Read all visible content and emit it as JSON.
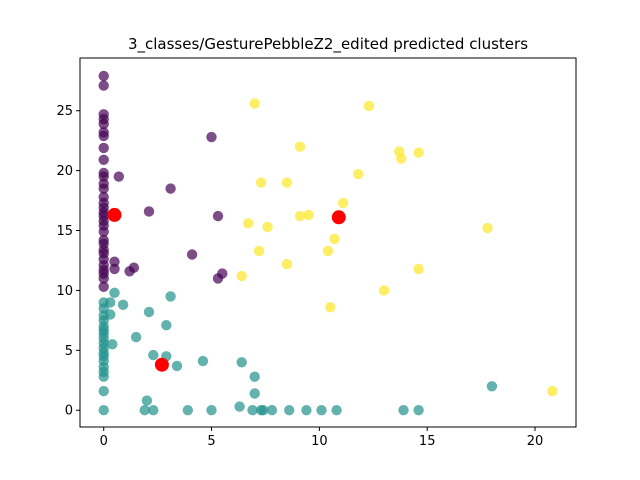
{
  "chart_data": {
    "type": "scatter",
    "title": "3_classes/GesturePebbleZ2_edited predicted clusters",
    "xlabel": "",
    "ylabel": "",
    "xlim": [
      -1.1,
      21.9
    ],
    "ylim": [
      -1.4,
      29.4
    ],
    "x_ticks": [
      0,
      5,
      10,
      15,
      20
    ],
    "y_ticks": [
      0,
      5,
      10,
      15,
      20,
      25
    ],
    "grid": false,
    "colors": {
      "cluster0": "#440154",
      "cluster1": "#21918c",
      "cluster2": "#fde725",
      "centroid": "#ff0000"
    },
    "series": [
      {
        "cluster": 0,
        "color": "#440154",
        "points": [
          [
            0,
            27.9
          ],
          [
            0,
            27.1
          ],
          [
            0,
            24.7
          ],
          [
            0,
            24.3
          ],
          [
            0,
            23.9
          ],
          [
            0,
            23.2
          ],
          [
            0,
            22.9
          ],
          [
            0,
            21.9
          ],
          [
            0,
            20.9
          ],
          [
            0,
            19.8
          ],
          [
            0,
            19.5
          ],
          [
            0,
            18.9
          ],
          [
            0,
            18.5
          ],
          [
            0,
            17.8
          ],
          [
            0,
            17.3
          ],
          [
            0,
            16.9
          ],
          [
            0,
            16.5
          ],
          [
            0,
            16.2
          ],
          [
            0,
            15.8
          ],
          [
            0,
            15.4
          ],
          [
            0,
            14.9
          ],
          [
            0,
            14.2
          ],
          [
            0,
            13.9
          ],
          [
            0,
            13.4
          ],
          [
            0,
            13.1
          ],
          [
            0,
            12.6
          ],
          [
            0,
            12.1
          ],
          [
            0,
            11.7
          ],
          [
            0,
            11.4
          ],
          [
            0,
            11.0
          ],
          [
            0,
            10.3
          ],
          [
            0.7,
            19.5
          ],
          [
            0.5,
            12.4
          ],
          [
            0.5,
            11.8
          ],
          [
            1.2,
            11.6
          ],
          [
            1.4,
            11.9
          ],
          [
            2.1,
            16.6
          ],
          [
            3.1,
            18.5
          ],
          [
            4.1,
            13.0
          ],
          [
            5.0,
            22.8
          ],
          [
            5.3,
            16.2
          ],
          [
            5.3,
            11.0
          ],
          [
            5.5,
            11.4
          ]
        ]
      },
      {
        "cluster": 1,
        "color": "#21918c",
        "points": [
          [
            0,
            9.0
          ],
          [
            0,
            8.5
          ],
          [
            0,
            7.9
          ],
          [
            0,
            7.5
          ],
          [
            0,
            7.0
          ],
          [
            0,
            6.7
          ],
          [
            0,
            6.4
          ],
          [
            0,
            6.0
          ],
          [
            0,
            5.6
          ],
          [
            0,
            5.2
          ],
          [
            0,
            4.8
          ],
          [
            0,
            4.5
          ],
          [
            0,
            4.1
          ],
          [
            0,
            3.6
          ],
          [
            0,
            3.2
          ],
          [
            0,
            2.8
          ],
          [
            0,
            1.6
          ],
          [
            0,
            0.0
          ],
          [
            0.3,
            8.0
          ],
          [
            0.3,
            9.0
          ],
          [
            0.4,
            5.5
          ],
          [
            0.5,
            9.8
          ],
          [
            0.9,
            8.8
          ],
          [
            1.5,
            6.1
          ],
          [
            2.1,
            8.2
          ],
          [
            2.3,
            4.6
          ],
          [
            2.9,
            4.5
          ],
          [
            2.9,
            7.1
          ],
          [
            3.1,
            9.5
          ],
          [
            3.4,
            3.7
          ],
          [
            3.9,
            0.0
          ],
          [
            4.6,
            4.1
          ],
          [
            2.0,
            0.8
          ],
          [
            1.9,
            0.0
          ],
          [
            2.3,
            0.0
          ],
          [
            5.0,
            0.0
          ],
          [
            6.3,
            0.3
          ],
          [
            6.4,
            4.0
          ],
          [
            6.9,
            0.0
          ],
          [
            7.0,
            2.8
          ],
          [
            7.0,
            1.4
          ],
          [
            7.3,
            0.0
          ],
          [
            7.4,
            0.0
          ],
          [
            7.8,
            0.0
          ],
          [
            8.6,
            0.0
          ],
          [
            9.4,
            0.0
          ],
          [
            10.1,
            0.0
          ],
          [
            10.8,
            0.0
          ],
          [
            13.9,
            0.0
          ],
          [
            14.6,
            0.0
          ],
          [
            18.0,
            2.0
          ]
        ]
      },
      {
        "cluster": 2,
        "color": "#fde725",
        "points": [
          [
            7.0,
            25.6
          ],
          [
            12.3,
            25.4
          ],
          [
            9.1,
            22.0
          ],
          [
            13.7,
            21.6
          ],
          [
            13.8,
            21.0
          ],
          [
            14.6,
            21.5
          ],
          [
            11.8,
            19.7
          ],
          [
            7.3,
            19.0
          ],
          [
            8.5,
            19.0
          ],
          [
            11.1,
            17.3
          ],
          [
            9.1,
            16.2
          ],
          [
            9.5,
            16.3
          ],
          [
            6.7,
            15.6
          ],
          [
            7.6,
            15.3
          ],
          [
            17.8,
            15.2
          ],
          [
            10.7,
            14.3
          ],
          [
            7.2,
            13.3
          ],
          [
            10.4,
            13.3
          ],
          [
            8.5,
            12.2
          ],
          [
            14.6,
            11.8
          ],
          [
            6.4,
            11.2
          ],
          [
            13.0,
            10.0
          ],
          [
            10.5,
            8.6
          ],
          [
            20.8,
            1.6
          ]
        ]
      }
    ],
    "centroids": [
      [
        0.5,
        16.3
      ],
      [
        2.7,
        3.8
      ],
      [
        10.9,
        16.1
      ]
    ]
  }
}
